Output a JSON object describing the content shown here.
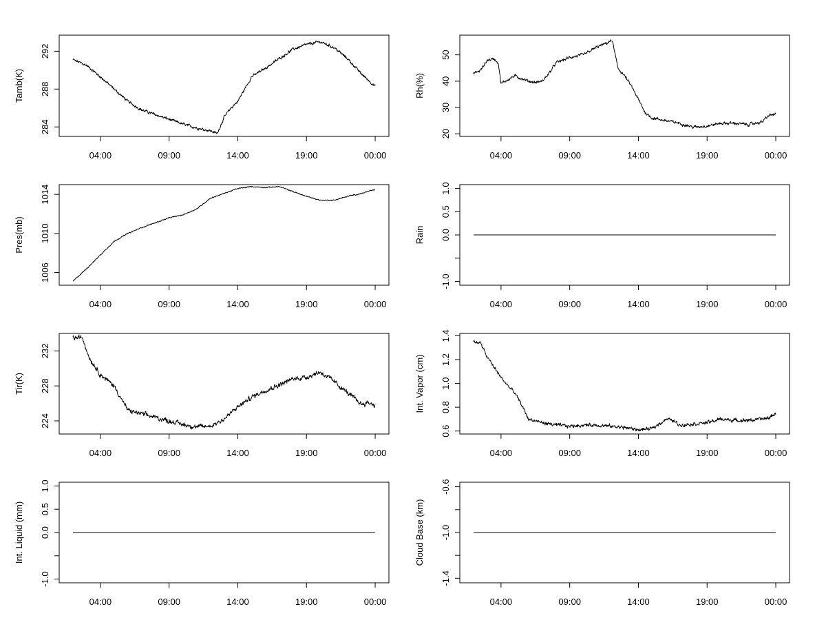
{
  "colors": {
    "background": "#ffffff",
    "line": "#000000",
    "axis": "#000000"
  },
  "chart_data": [
    {
      "type": "line",
      "ylabel": "Tamb(K)",
      "xlabel": "",
      "title": "",
      "xlim": [
        0,
        24
      ],
      "ylim": [
        283.0,
        293.7
      ],
      "xticks": [
        3,
        8,
        13,
        18,
        23
      ],
      "xtick_labels": [
        "04:00",
        "09:00",
        "14:00",
        "19:00",
        "00:00"
      ],
      "yticks": [
        284,
        288,
        292
      ],
      "ytick_labels": [
        "284",
        "288",
        "292"
      ],
      "noise": 0.12,
      "x": [
        1,
        2,
        3,
        4,
        5,
        6,
        7,
        8,
        9,
        10,
        11,
        11.5,
        12,
        12.5,
        13,
        13.5,
        14,
        15,
        16,
        17,
        18,
        19,
        20,
        21,
        22,
        23
      ],
      "y": [
        291.1,
        290.5,
        289.3,
        288.0,
        286.7,
        285.8,
        285.3,
        284.8,
        284.3,
        283.9,
        283.6,
        283.3,
        285.0,
        286.0,
        286.7,
        288.0,
        289.3,
        290.2,
        291.2,
        292.2,
        292.7,
        293.0,
        292.4,
        291.2,
        289.6,
        288.3
      ]
    },
    {
      "type": "line",
      "ylabel": "Rh(%)",
      "xlabel": "",
      "title": "",
      "xlim": [
        0,
        24
      ],
      "ylim": [
        19.0,
        57.5
      ],
      "xticks": [
        3,
        8,
        13,
        18,
        23
      ],
      "xtick_labels": [
        "04:00",
        "09:00",
        "14:00",
        "19:00",
        "00:00"
      ],
      "yticks": [
        20,
        30,
        40,
        50
      ],
      "ytick_labels": [
        "20",
        "30",
        "40",
        "50"
      ],
      "noise": 0.45,
      "x": [
        1,
        1.5,
        2,
        2.5,
        2.8,
        3.0,
        3.3,
        4,
        5,
        5.5,
        6,
        6.5,
        7,
        8,
        9,
        10,
        10.5,
        11.1,
        11.5,
        12,
        12.5,
        13,
        13.5,
        14,
        15,
        16,
        17,
        18,
        19,
        20,
        21,
        22,
        22.5,
        23
      ],
      "y": [
        43,
        44,
        48,
        48.5,
        47,
        39,
        40,
        42,
        40,
        39.5,
        40,
        43,
        47,
        49,
        50,
        53,
        54,
        55.5,
        45,
        42,
        38,
        33,
        28,
        26,
        25,
        24,
        22.5,
        23,
        24,
        24,
        23.5,
        24.5,
        27,
        27.5
      ]
    },
    {
      "type": "line",
      "ylabel": "Pres(mb)",
      "xlabel": "",
      "title": "",
      "xlim": [
        0,
        24
      ],
      "ylim": [
        1004.7,
        1015.0
      ],
      "xticks": [
        3,
        8,
        13,
        18,
        23
      ],
      "xtick_labels": [
        "04:00",
        "09:00",
        "14:00",
        "19:00",
        "00:00"
      ],
      "yticks": [
        1006,
        1010,
        1014
      ],
      "ytick_labels": [
        "1006",
        "1010",
        "1014"
      ],
      "noise": 0.04,
      "x": [
        1,
        2,
        3,
        4,
        5,
        6,
        7,
        8,
        9,
        10,
        11,
        12,
        13,
        14,
        15,
        16,
        17,
        18,
        19,
        20,
        21,
        22,
        23
      ],
      "y": [
        1005.1,
        1006.4,
        1007.8,
        1009.2,
        1010.0,
        1010.6,
        1011.1,
        1011.6,
        1011.9,
        1012.5,
        1013.6,
        1014.1,
        1014.6,
        1014.8,
        1014.7,
        1014.8,
        1014.3,
        1013.8,
        1013.4,
        1013.4,
        1013.8,
        1014.1,
        1014.5
      ]
    },
    {
      "type": "line",
      "ylabel": "Rain",
      "xlabel": "",
      "title": "",
      "xlim": [
        0,
        24
      ],
      "ylim": [
        -1.08,
        1.08
      ],
      "xticks": [
        3,
        8,
        13,
        18,
        23
      ],
      "xtick_labels": [
        "04:00",
        "09:00",
        "14:00",
        "19:00",
        "00:00"
      ],
      "yticks": [
        -1.0,
        -0.5,
        0.0,
        0.5,
        1.0
      ],
      "ytick_labels": [
        "-1.0",
        "",
        "0.0",
        "0.5",
        "1.0"
      ],
      "noise": 0,
      "x": [
        1,
        23
      ],
      "y": [
        0,
        0
      ]
    },
    {
      "type": "line",
      "ylabel": "Tir(K)",
      "xlabel": "",
      "title": "",
      "xlim": [
        0,
        24
      ],
      "ylim": [
        222.5,
        234.0
      ],
      "xticks": [
        3,
        8,
        13,
        18,
        23
      ],
      "xtick_labels": [
        "04:00",
        "09:00",
        "14:00",
        "19:00",
        "00:00"
      ],
      "yticks": [
        224,
        228,
        232
      ],
      "ytick_labels": [
        "224",
        "228",
        "232"
      ],
      "noise": 0.22,
      "x": [
        1,
        1.7,
        2.2,
        3,
        4,
        5,
        6,
        7,
        8,
        9,
        10,
        11,
        12,
        13,
        14,
        15,
        16,
        17,
        18,
        19,
        20,
        21,
        22,
        22.5,
        23
      ],
      "y": [
        233.5,
        233.5,
        231.2,
        229.3,
        228.0,
        225.2,
        224.8,
        224.4,
        224.0,
        223.6,
        223.3,
        223.4,
        224.2,
        225.6,
        226.7,
        227.5,
        228.1,
        228.8,
        229.0,
        229.6,
        228.5,
        227.2,
        225.9,
        226.1,
        225.8
      ]
    },
    {
      "type": "line",
      "ylabel": "Int. Vapor (cm)",
      "xlabel": "",
      "title": "",
      "xlim": [
        0,
        24
      ],
      "ylim": [
        0.575,
        1.42
      ],
      "xticks": [
        3,
        8,
        13,
        18,
        23
      ],
      "xtick_labels": [
        "04:00",
        "09:00",
        "14:00",
        "19:00",
        "00:00"
      ],
      "yticks": [
        0.6,
        0.8,
        1.0,
        1.2,
        1.4
      ],
      "ytick_labels": [
        "0.6",
        "0.8",
        "1.0",
        "1.2",
        "1.4"
      ],
      "noise": 0.012,
      "x": [
        1,
        1.5,
        2,
        3,
        3.5,
        4,
        4.5,
        5,
        6,
        7,
        8,
        9,
        10,
        11,
        12,
        13,
        14,
        14.5,
        15,
        15.5,
        16,
        17,
        18,
        19,
        20,
        21,
        22,
        22.5,
        23
      ],
      "y": [
        1.35,
        1.34,
        1.22,
        1.05,
        0.98,
        0.92,
        0.82,
        0.7,
        0.67,
        0.65,
        0.64,
        0.65,
        0.65,
        0.64,
        0.63,
        0.61,
        0.62,
        0.66,
        0.7,
        0.69,
        0.65,
        0.66,
        0.67,
        0.7,
        0.69,
        0.69,
        0.7,
        0.71,
        0.75
      ]
    },
    {
      "type": "line",
      "ylabel": "Int. Liquid (mm)",
      "xlabel": "",
      "title": "",
      "xlim": [
        0,
        24
      ],
      "ylim": [
        -1.08,
        1.08
      ],
      "xticks": [
        3,
        8,
        13,
        18,
        23
      ],
      "xtick_labels": [
        "04:00",
        "09:00",
        "14:00",
        "19:00",
        "00:00"
      ],
      "yticks": [
        -1.0,
        -0.5,
        0.0,
        0.5,
        1.0
      ],
      "ytick_labels": [
        "-1.0",
        "",
        "0.0",
        "0.5",
        "1.0"
      ],
      "noise": 0,
      "x": [
        1,
        23
      ],
      "y": [
        0,
        0
      ]
    },
    {
      "type": "line",
      "ylabel": "Cloud Base (km)",
      "xlabel": "",
      "title": "",
      "xlim": [
        0,
        24
      ],
      "ylim": [
        -1.44,
        -0.56
      ],
      "xticks": [
        3,
        8,
        13,
        18,
        23
      ],
      "xtick_labels": [
        "04:00",
        "09:00",
        "14:00",
        "19:00",
        "00:00"
      ],
      "yticks": [
        -1.4,
        -1.2,
        -1.0,
        -0.8,
        -0.6
      ],
      "ytick_labels": [
        "-1.4",
        "",
        "-1.0",
        "",
        "-0.6"
      ],
      "noise": 0,
      "x": [
        1,
        23
      ],
      "y": [
        -1.0,
        -1.0
      ]
    }
  ]
}
